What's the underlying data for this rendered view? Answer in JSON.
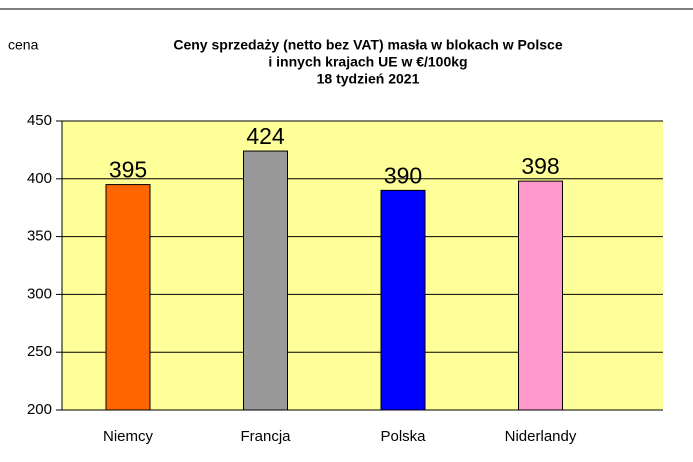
{
  "chart_data": {
    "type": "bar",
    "title": [
      "Ceny sprzedaży (netto bez VAT) masła  w blokach w Polsce",
      "i  innych krajach  UE w €/100kg",
      "18  tydzień 2021"
    ],
    "ylabel": "cena",
    "categories": [
      "Niemcy",
      "Francja",
      "Polska",
      "Niderlandy"
    ],
    "values": [
      395,
      424,
      390,
      398
    ],
    "colors": [
      "#ff6600",
      "#999999",
      "#0000ff",
      "#ff99cc"
    ],
    "ylim": [
      200,
      450
    ],
    "yticks": [
      200,
      250,
      300,
      350,
      400,
      450
    ],
    "grid": true,
    "plot_background": "#ffff99"
  }
}
